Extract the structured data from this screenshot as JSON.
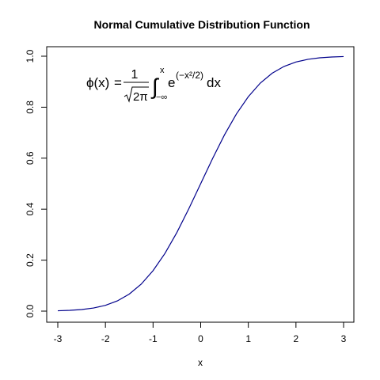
{
  "chart_data": {
    "type": "line",
    "title": "Normal Cumulative Distribution Function",
    "xlabel": "x",
    "ylabel": "",
    "xlim": [
      -3,
      3
    ],
    "ylim": [
      0,
      1
    ],
    "xticks": [
      -3,
      -2,
      -1,
      0,
      1,
      2,
      3
    ],
    "yticks": [
      0.0,
      0.2,
      0.4,
      0.6,
      0.8,
      1.0
    ],
    "xtick_labels": [
      "-3",
      "-2",
      "-1",
      "0",
      "1",
      "2",
      "3"
    ],
    "ytick_labels": [
      "0.0",
      "0.2",
      "0.4",
      "0.6",
      "0.8",
      "1.0"
    ],
    "grid": false,
    "series": [
      {
        "color": "#00008b",
        "x": [
          -3.0,
          -2.75,
          -2.5,
          -2.25,
          -2.0,
          -1.75,
          -1.5,
          -1.25,
          -1.0,
          -0.75,
          -0.5,
          -0.25,
          0.0,
          0.25,
          0.5,
          0.75,
          1.0,
          1.25,
          1.5,
          1.75,
          2.0,
          2.25,
          2.5,
          2.75,
          3.0
        ],
        "y": [
          0.0013,
          0.003,
          0.0062,
          0.0122,
          0.0228,
          0.0401,
          0.0668,
          0.1056,
          0.1587,
          0.2266,
          0.3085,
          0.4013,
          0.5,
          0.5987,
          0.6915,
          0.7734,
          0.8413,
          0.8944,
          0.9332,
          0.9599,
          0.9772,
          0.9878,
          0.9938,
          0.997,
          0.9987
        ]
      }
    ],
    "annotation": {
      "phi": "ϕ(x)",
      "equals": "=",
      "numerator": "1",
      "denominator": "2π",
      "integral": "∫",
      "upper_limit": "x",
      "lower_limit": "−∞",
      "e": "e",
      "exponent": "(−x²/2)",
      "differential": "dx"
    }
  }
}
